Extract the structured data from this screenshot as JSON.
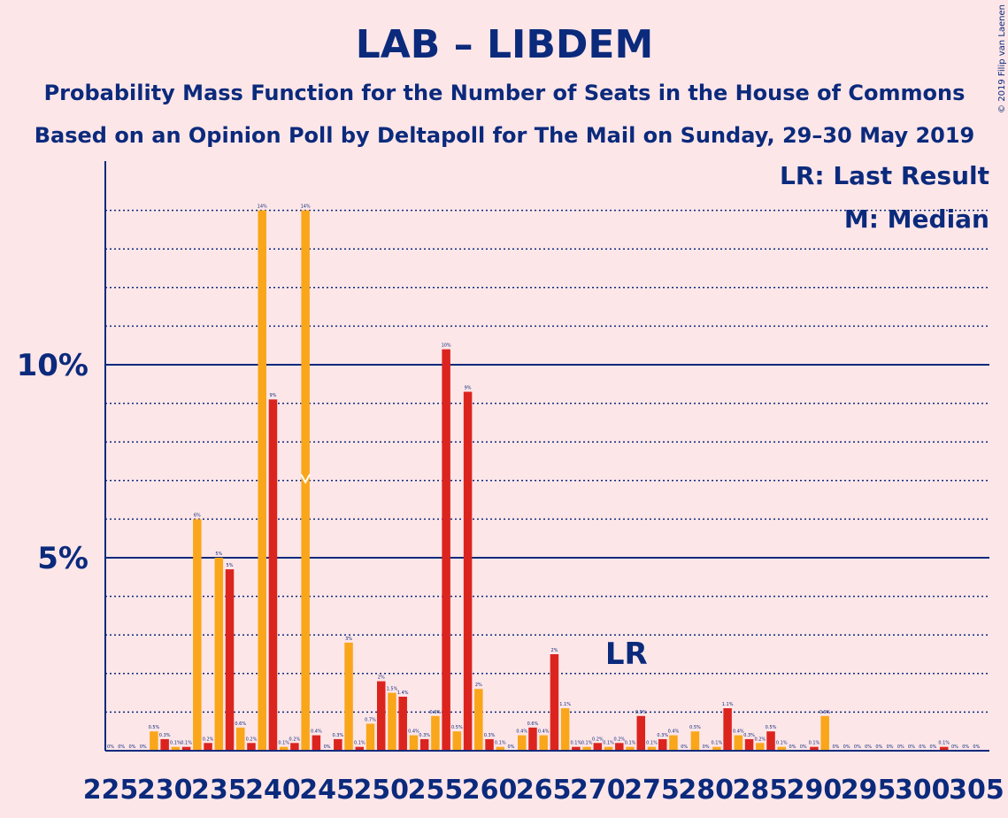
{
  "chart_data": {
    "type": "bar",
    "title": "LAB – LIBDEM",
    "subtitle": "Probability Mass Function for the Number of Seats in the House of Commons",
    "subtitle2": "Based on an Opinion Poll by Deltapoll for The Mail on Sunday, 29–30 May 2019",
    "copyright": "© 2019 Filip van Laenen",
    "legend": {
      "lr": "LR: Last Result",
      "median": "M: Median"
    },
    "last_result_label": "LR",
    "last_result_seat": 272,
    "median_seat": 243,
    "median_marker": "M",
    "y_ticks": [
      {
        "value": 5,
        "label": "5%"
      },
      {
        "value": 10,
        "label": "10%"
      }
    ],
    "ylim": [
      0,
      15
    ],
    "xlim": [
      225,
      305
    ],
    "x_ticks": [
      {
        "value": 225,
        "label": "225"
      },
      {
        "value": 230,
        "label": "230"
      },
      {
        "value": 235,
        "label": "235"
      },
      {
        "value": 240,
        "label": "240"
      },
      {
        "value": 245,
        "label": "245"
      },
      {
        "value": 250,
        "label": "250"
      },
      {
        "value": 255,
        "label": "255"
      },
      {
        "value": 260,
        "label": "260"
      },
      {
        "value": 265,
        "label": "265"
      },
      {
        "value": 270,
        "label": "270"
      },
      {
        "value": 275,
        "label": "275"
      },
      {
        "value": 280,
        "label": "280"
      },
      {
        "value": 285,
        "label": "285"
      },
      {
        "value": 290,
        "label": "290"
      },
      {
        "value": 295,
        "label": "295"
      },
      {
        "value": 300,
        "label": "300"
      },
      {
        "value": 305,
        "label": "305"
      }
    ],
    "colors": {
      "lab": "#dc241f",
      "libdem": "#faa61a",
      "axis": "#0b2a7c",
      "background": "#fde6e8"
    },
    "bars": [
      {
        "seat": 225,
        "value": 0,
        "label": "0%",
        "color": "#faa61a"
      },
      {
        "seat": 226,
        "value": 0,
        "label": "0%",
        "color": "#dc241f"
      },
      {
        "seat": 227,
        "value": 0,
        "label": "0%",
        "color": "#faa61a"
      },
      {
        "seat": 228,
        "value": 0,
        "label": "0%",
        "color": "#dc241f"
      },
      {
        "seat": 229,
        "value": 0.5,
        "label": "0.5%",
        "color": "#faa61a"
      },
      {
        "seat": 230,
        "value": 0.3,
        "label": "0.3%",
        "color": "#dc241f"
      },
      {
        "seat": 231,
        "value": 0.1,
        "label": "0.1%",
        "color": "#faa61a"
      },
      {
        "seat": 232,
        "value": 0.1,
        "label": "0.1%",
        "color": "#dc241f"
      },
      {
        "seat": 233,
        "value": 6.0,
        "label": "6%",
        "color": "#faa61a"
      },
      {
        "seat": 234,
        "value": 0.2,
        "label": "0.2%",
        "color": "#dc241f"
      },
      {
        "seat": 235,
        "value": 5.0,
        "label": "5%",
        "color": "#faa61a"
      },
      {
        "seat": 236,
        "value": 4.7,
        "label": "5%",
        "color": "#dc241f"
      },
      {
        "seat": 237,
        "value": 0.6,
        "label": "0.6%",
        "color": "#faa61a"
      },
      {
        "seat": 238,
        "value": 0.2,
        "label": "0.2%",
        "color": "#dc241f"
      },
      {
        "seat": 239,
        "value": 14.0,
        "label": "14%",
        "color": "#faa61a"
      },
      {
        "seat": 240,
        "value": 9.1,
        "label": "9%",
        "color": "#dc241f"
      },
      {
        "seat": 241,
        "value": 0.1,
        "label": "0.1%",
        "color": "#faa61a"
      },
      {
        "seat": 242,
        "value": 0.2,
        "label": "0.2%",
        "color": "#dc241f"
      },
      {
        "seat": 243,
        "value": 14.0,
        "label": "14%",
        "color": "#faa61a"
      },
      {
        "seat": 244,
        "value": 0.4,
        "label": "0.4%",
        "color": "#dc241f"
      },
      {
        "seat": 245,
        "value": 0,
        "label": "0%",
        "color": "#faa61a"
      },
      {
        "seat": 246,
        "value": 0.3,
        "label": "0.3%",
        "color": "#dc241f"
      },
      {
        "seat": 247,
        "value": 2.8,
        "label": "3%",
        "color": "#faa61a"
      },
      {
        "seat": 248,
        "value": 0.1,
        "label": "0.1%",
        "color": "#dc241f"
      },
      {
        "seat": 249,
        "value": 0.7,
        "label": "0.7%",
        "color": "#faa61a"
      },
      {
        "seat": 250,
        "value": 1.8,
        "label": "2%",
        "color": "#dc241f"
      },
      {
        "seat": 251,
        "value": 1.5,
        "label": "1.5%",
        "color": "#faa61a"
      },
      {
        "seat": 252,
        "value": 1.4,
        "label": "1.4%",
        "color": "#dc241f"
      },
      {
        "seat": 253,
        "value": 0.4,
        "label": "0.4%",
        "color": "#faa61a"
      },
      {
        "seat": 254,
        "value": 0.3,
        "label": "0.3%",
        "color": "#dc241f"
      },
      {
        "seat": 255,
        "value": 0.9,
        "label": "0.9%",
        "color": "#faa61a"
      },
      {
        "seat": 256,
        "value": 10.4,
        "label": "10%",
        "color": "#dc241f"
      },
      {
        "seat": 257,
        "value": 0.5,
        "label": "0.5%",
        "color": "#faa61a"
      },
      {
        "seat": 258,
        "value": 9.3,
        "label": "9%",
        "color": "#dc241f"
      },
      {
        "seat": 259,
        "value": 1.6,
        "label": "2%",
        "color": "#faa61a"
      },
      {
        "seat": 260,
        "value": 0.3,
        "label": "0.3%",
        "color": "#dc241f"
      },
      {
        "seat": 261,
        "value": 0.1,
        "label": "0.1%",
        "color": "#faa61a"
      },
      {
        "seat": 262,
        "value": 0,
        "label": "0%",
        "color": "#dc241f"
      },
      {
        "seat": 263,
        "value": 0.4,
        "label": "0.4%",
        "color": "#faa61a"
      },
      {
        "seat": 264,
        "value": 0.6,
        "label": "0.6%",
        "color": "#dc241f"
      },
      {
        "seat": 265,
        "value": 0.4,
        "label": "0.4%",
        "color": "#faa61a"
      },
      {
        "seat": 266,
        "value": 2.5,
        "label": "2%",
        "color": "#dc241f"
      },
      {
        "seat": 267,
        "value": 1.1,
        "label": "1.1%",
        "color": "#faa61a"
      },
      {
        "seat": 268,
        "value": 0.1,
        "label": "0.1%",
        "color": "#dc241f"
      },
      {
        "seat": 269,
        "value": 0.1,
        "label": "0.1%",
        "color": "#faa61a"
      },
      {
        "seat": 270,
        "value": 0.2,
        "label": "0.2%",
        "color": "#dc241f"
      },
      {
        "seat": 271,
        "value": 0.1,
        "label": "0.1%",
        "color": "#faa61a"
      },
      {
        "seat": 272,
        "value": 0.2,
        "label": "0.2%",
        "color": "#dc241f"
      },
      {
        "seat": 273,
        "value": 0.1,
        "label": "0.1%",
        "color": "#faa61a"
      },
      {
        "seat": 274,
        "value": 0.9,
        "label": "0.9%",
        "color": "#dc241f"
      },
      {
        "seat": 275,
        "value": 0.1,
        "label": "0.1%",
        "color": "#faa61a"
      },
      {
        "seat": 276,
        "value": 0.3,
        "label": "0.3%",
        "color": "#dc241f"
      },
      {
        "seat": 277,
        "value": 0.4,
        "label": "0.4%",
        "color": "#faa61a"
      },
      {
        "seat": 278,
        "value": 0,
        "label": "0%",
        "color": "#dc241f"
      },
      {
        "seat": 279,
        "value": 0.5,
        "label": "0.5%",
        "color": "#faa61a"
      },
      {
        "seat": 280,
        "value": 0,
        "label": "0%",
        "color": "#dc241f"
      },
      {
        "seat": 281,
        "value": 0.1,
        "label": "0.1%",
        "color": "#faa61a"
      },
      {
        "seat": 282,
        "value": 1.1,
        "label": "1.1%",
        "color": "#dc241f"
      },
      {
        "seat": 283,
        "value": 0.4,
        "label": "0.4%",
        "color": "#faa61a"
      },
      {
        "seat": 284,
        "value": 0.3,
        "label": "0.3%",
        "color": "#dc241f"
      },
      {
        "seat": 285,
        "value": 0.2,
        "label": "0.2%",
        "color": "#faa61a"
      },
      {
        "seat": 286,
        "value": 0.5,
        "label": "0.5%",
        "color": "#dc241f"
      },
      {
        "seat": 287,
        "value": 0.1,
        "label": "0.1%",
        "color": "#faa61a"
      },
      {
        "seat": 288,
        "value": 0,
        "label": "0%",
        "color": "#dc241f"
      },
      {
        "seat": 289,
        "value": 0,
        "label": "0%",
        "color": "#faa61a"
      },
      {
        "seat": 290,
        "value": 0.1,
        "label": "0.1%",
        "color": "#dc241f"
      },
      {
        "seat": 291,
        "value": 0.9,
        "label": "0.9%",
        "color": "#faa61a"
      },
      {
        "seat": 292,
        "value": 0,
        "label": "0%",
        "color": "#dc241f"
      },
      {
        "seat": 293,
        "value": 0,
        "label": "0%",
        "color": "#faa61a"
      },
      {
        "seat": 294,
        "value": 0,
        "label": "0%",
        "color": "#dc241f"
      },
      {
        "seat": 295,
        "value": 0,
        "label": "0%",
        "color": "#faa61a"
      },
      {
        "seat": 296,
        "value": 0,
        "label": "0%",
        "color": "#dc241f"
      },
      {
        "seat": 297,
        "value": 0,
        "label": "0%",
        "color": "#faa61a"
      },
      {
        "seat": 298,
        "value": 0,
        "label": "0%",
        "color": "#dc241f"
      },
      {
        "seat": 299,
        "value": 0,
        "label": "0%",
        "color": "#faa61a"
      },
      {
        "seat": 300,
        "value": 0,
        "label": "0%",
        "color": "#dc241f"
      },
      {
        "seat": 301,
        "value": 0,
        "label": "0%",
        "color": "#faa61a"
      },
      {
        "seat": 302,
        "value": 0.1,
        "label": "0.1%",
        "color": "#dc241f"
      },
      {
        "seat": 303,
        "value": 0,
        "label": "0%",
        "color": "#faa61a"
      },
      {
        "seat": 304,
        "value": 0,
        "label": "0%",
        "color": "#dc241f"
      },
      {
        "seat": 305,
        "value": 0,
        "label": "0%",
        "color": "#faa61a"
      }
    ]
  }
}
